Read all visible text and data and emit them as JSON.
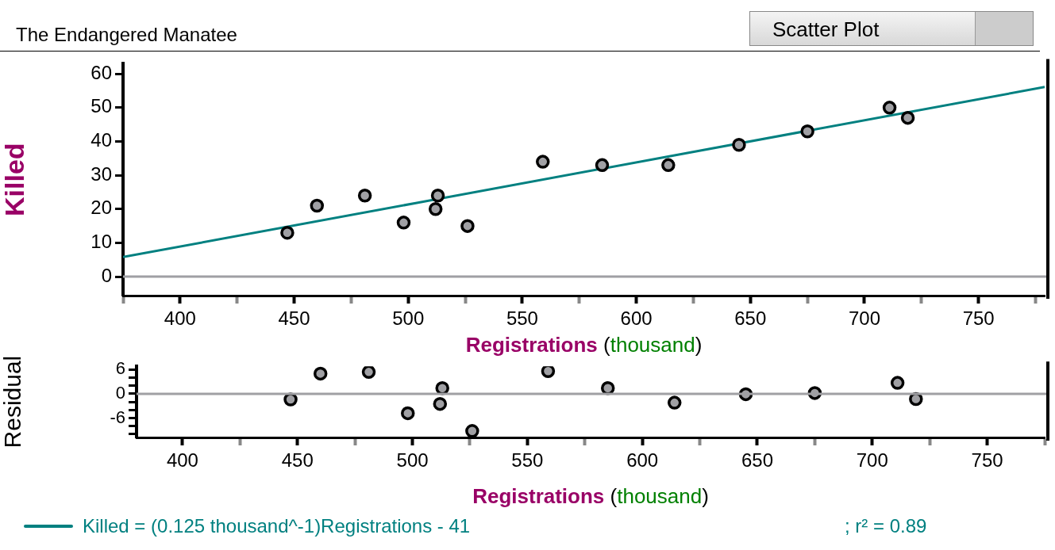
{
  "chart_data": [
    {
      "type": "scatter",
      "title": "The Endangered Manatee",
      "xlabel": "Registrations (thousand)",
      "ylabel": "Killed",
      "xlim": [
        375,
        779
      ],
      "ylim": [
        -5.6,
        63
      ],
      "xticks": [
        {
          "value": 375,
          "label": null
        },
        400,
        {
          "value": 425,
          "label": null
        },
        450,
        {
          "value": 475,
          "label": null
        },
        500,
        {
          "value": 525,
          "label": null
        },
        550,
        {
          "value": 575,
          "label": null
        },
        600,
        {
          "value": 625,
          "label": null
        },
        650,
        {
          "value": 675,
          "label": null
        },
        700,
        {
          "value": 725,
          "label": null
        },
        750,
        {
          "value": 775,
          "label": null
        }
      ],
      "yticks": [
        0,
        10,
        20,
        30,
        40,
        50,
        60
      ],
      "series": [
        {
          "color": "#a0a0a4",
          "x": [
            447,
            460,
            481,
            498,
            513,
            512,
            526,
            559,
            585,
            614,
            645,
            675,
            711,
            719
          ],
          "values": [
            13,
            21,
            24,
            16,
            24,
            20,
            15,
            34,
            33,
            33,
            39,
            43,
            50,
            47
          ]
        },
        {
          "type": "line",
          "name": "Killed = (0.125 thousand^-1)Registrations - 41",
          "color": "#008080",
          "x": [
            375,
            779
          ],
          "values": [
            5.8,
            56.1
          ],
          "marker": "none"
        }
      ],
      "ref_lines": [
        {
          "axis": "y",
          "value": 0,
          "color": "#a0a0a4"
        }
      ],
      "legend": "bottom left",
      "grid": false,
      "marker": "circle",
      "annotations": [
        "Scatter Plot",
        "; r² = 0.89"
      ]
    },
    {
      "type": "scatter",
      "xlabel": "Registrations (thousand)",
      "ylabel": "Residual",
      "xlim": [
        380,
        775
      ],
      "ylim": [
        -10.8,
        6.8
      ],
      "xticks": [
        400,
        {
          "value": 425,
          "label": null
        },
        450,
        {
          "value": 475,
          "label": null
        },
        500,
        {
          "value": 525,
          "label": null
        },
        550,
        {
          "value": 575,
          "label": null
        },
        600,
        {
          "value": 625,
          "label": null
        },
        650,
        {
          "value": 675,
          "label": null
        },
        700,
        {
          "value": 725,
          "label": null
        },
        750,
        {
          "value": 775,
          "label": null
        }
      ],
      "yticks": [
        {
          "value": -10,
          "label": null
        },
        {
          "value": -8,
          "label": null
        },
        -6,
        {
          "value": -4,
          "label": null
        },
        {
          "value": -2,
          "label": null
        },
        0,
        {
          "value": 2,
          "label": null
        },
        {
          "value": 4,
          "label": null
        },
        6
      ],
      "series": [
        {
          "color": "#a0a0a4",
          "x": [
            447,
            460,
            481,
            498,
            513,
            512,
            526,
            559,
            585,
            614,
            645,
            675,
            711,
            719
          ],
          "values": [
            -1.4,
            5.0,
            5.4,
            -4.8,
            1.4,
            -2.5,
            -9.2,
            5.6,
            1.4,
            -2.2,
            -0.1,
            0.2,
            2.7,
            -1.3
          ]
        }
      ],
      "ref_lines": [
        {
          "axis": "y",
          "value": 0,
          "color": "#a0a0a4"
        }
      ],
      "grid": false,
      "marker": "circle"
    }
  ]
}
